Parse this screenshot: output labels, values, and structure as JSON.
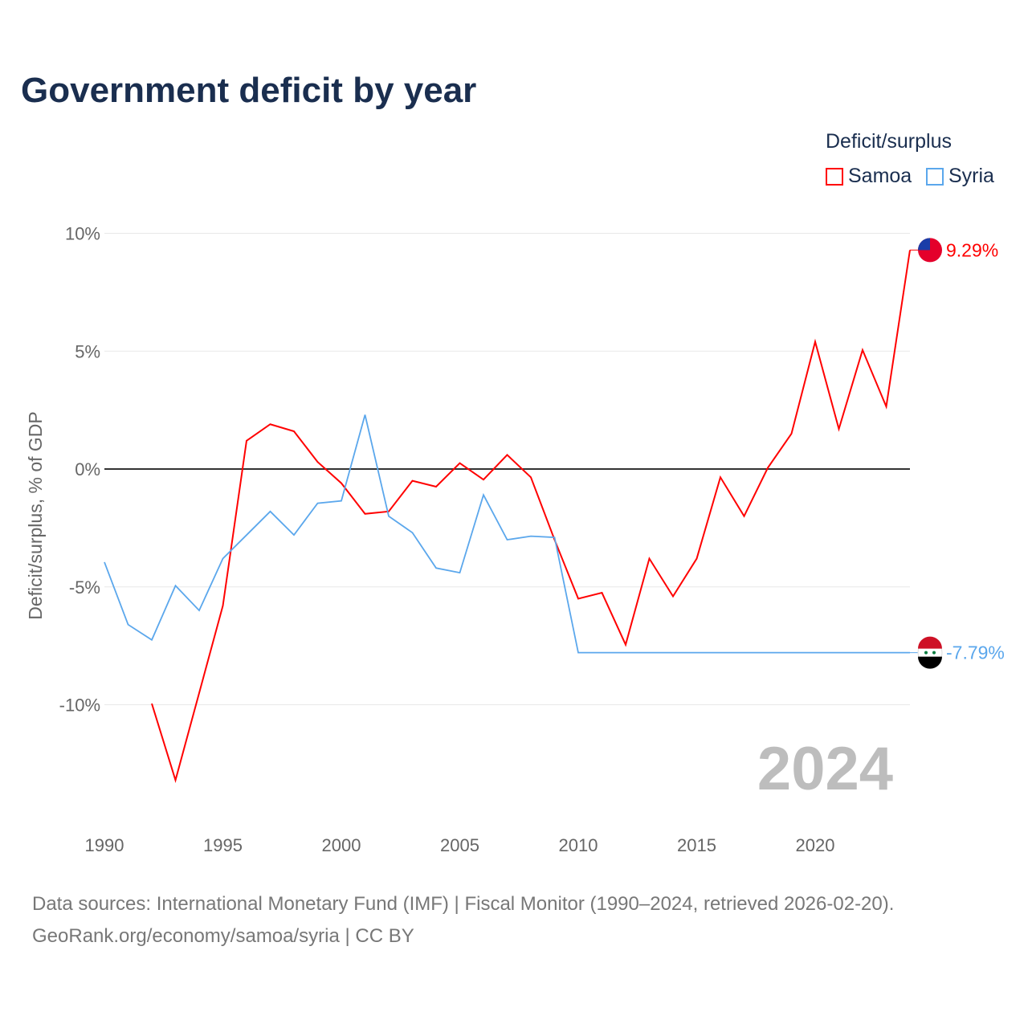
{
  "title": "Government deficit by year",
  "legend": {
    "title": "Deficit/surplus",
    "items": [
      {
        "name": "Samoa",
        "color": "#ff0000"
      },
      {
        "name": "Syria",
        "color": "#5ba7ec"
      }
    ]
  },
  "year_label": "2024",
  "source_line1": "Data sources: International Monetary Fund (IMF) | Fiscal Monitor (1990–2024, retrieved 2026-02-20).",
  "source_line2": "GeoRank.org/economy/samoa/syria | CC BY",
  "chart_data": {
    "type": "line",
    "title": "Government deficit by year",
    "xlabel": "",
    "ylabel": "Deficit/surplus, % of GDP",
    "xlim": [
      1990,
      2024
    ],
    "ylim": [
      -14,
      10
    ],
    "x_ticks": [
      1990,
      1995,
      2000,
      2005,
      2010,
      2015,
      2020
    ],
    "y_ticks": [
      {
        "v": 10,
        "label": "10%"
      },
      {
        "v": 5,
        "label": "5%"
      },
      {
        "v": 0,
        "label": "0%"
      },
      {
        "v": -5,
        "label": "-5%"
      },
      {
        "v": -10,
        "label": "-10%"
      }
    ],
    "grid": true,
    "legend_position": "top-right",
    "series": [
      {
        "name": "Samoa",
        "color": "#ff0000",
        "end_label": "9.29%",
        "x": [
          1992,
          1993,
          1994,
          1995,
          1996,
          1997,
          1998,
          1999,
          2000,
          2001,
          2002,
          2003,
          2004,
          2005,
          2006,
          2007,
          2008,
          2009,
          2010,
          2011,
          2012,
          2013,
          2014,
          2015,
          2016,
          2017,
          2018,
          2019,
          2020,
          2021,
          2022,
          2023,
          2024
        ],
        "values": [
          -9.95,
          -13.2,
          -9.5,
          -5.8,
          1.2,
          1.9,
          1.6,
          0.3,
          -0.6,
          -1.9,
          -1.8,
          -0.5,
          -0.75,
          0.25,
          -0.45,
          0.6,
          -0.35,
          -3.0,
          -5.5,
          -5.25,
          -7.45,
          -3.8,
          -5.4,
          -3.8,
          -0.35,
          -2.0,
          0.05,
          1.5,
          5.4,
          1.7,
          5.05,
          2.65,
          9.29
        ]
      },
      {
        "name": "Syria",
        "color": "#5ba7ec",
        "end_label": "-7.79%",
        "x": [
          1990,
          1991,
          1992,
          1993,
          1994,
          1995,
          1996,
          1997,
          1998,
          1999,
          2000,
          2001,
          2002,
          2003,
          2004,
          2005,
          2006,
          2007,
          2008,
          2009,
          2010,
          2024
        ],
        "values": [
          -3.95,
          -6.6,
          -7.25,
          -4.95,
          -6.0,
          -3.8,
          -2.8,
          -1.8,
          -2.8,
          -1.45,
          -1.35,
          2.3,
          -2.0,
          -2.7,
          -4.2,
          -4.4,
          -1.1,
          -3.0,
          -2.85,
          -2.9,
          -7.79,
          -7.79
        ]
      }
    ]
  }
}
